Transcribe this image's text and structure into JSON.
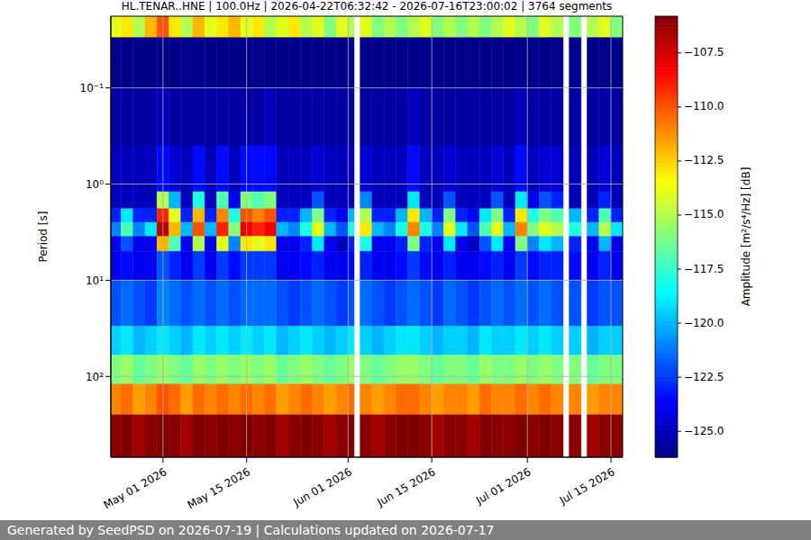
{
  "chart_data": {
    "type": "heatmap",
    "title": "HL.TENAR..HNE | 100.0Hz | 2026-04-22T06:32:42 - 2026-07-16T23:00:02 | 3764 segments",
    "ylabel": "Period [s]",
    "footer": "Generated by SeedPSD on 2026-07-19 | Calculations updated on 2026-07-17",
    "log": "y",
    "grid": true,
    "xlim": [
      "2026-04-22T06:32:42",
      "2026-07-16T23:00:02"
    ],
    "xticks": [
      {
        "value": "2026-05-01",
        "label": "May 01 2026"
      },
      {
        "value": "2026-05-15",
        "label": "May 15 2026"
      },
      {
        "value": "2026-06-01",
        "label": "Jun 01 2026"
      },
      {
        "value": "2026-06-15",
        "label": "Jun 15 2026"
      },
      {
        "value": "2026-07-01",
        "label": "Jul 01 2026"
      },
      {
        "value": "2026-07-15",
        "label": "Jul 15 2026"
      }
    ],
    "ylim": [
      0.018,
      690
    ],
    "yticks": [
      {
        "value": 0.1,
        "label": "10⁻¹"
      },
      {
        "value": 1,
        "label": "10⁰"
      },
      {
        "value": 10,
        "label": "10¹"
      },
      {
        "value": 100,
        "label": "10²"
      }
    ],
    "x": [
      "2026-04-22",
      "2026-04-24",
      "2026-04-26",
      "2026-04-28",
      "2026-04-30",
      "2026-05-02",
      "2026-05-04",
      "2026-05-06",
      "2026-05-08",
      "2026-05-10",
      "2026-05-12",
      "2026-05-14",
      "2026-05-16",
      "2026-05-18",
      "2026-05-20",
      "2026-05-22",
      "2026-05-24",
      "2026-05-26",
      "2026-05-28",
      "2026-05-30",
      "2026-06-01",
      "2026-06-02",
      "2026-06-03",
      "2026-06-05",
      "2026-06-07",
      "2026-06-09",
      "2026-06-11",
      "2026-06-13",
      "2026-06-15",
      "2026-06-17",
      "2026-06-19",
      "2026-06-21",
      "2026-06-23",
      "2026-06-25",
      "2026-06-27",
      "2026-06-29",
      "2026-07-01",
      "2026-07-03",
      "2026-07-05",
      "2026-07-07",
      "2026-07-08",
      "2026-07-10",
      "2026-07-11",
      "2026-07-13",
      "2026-07-15"
    ],
    "y_edges": [
      0.018,
      0.03,
      0.1,
      0.4,
      1.2,
      1.8,
      2.5,
      3.5,
      5,
      10,
      30,
      60,
      120,
      250,
      690
    ],
    "values": [
      [
        -114,
        -113,
        -115,
        -112,
        -110,
        -113,
        -115,
        -112,
        -114,
        -113,
        -112,
        -114,
        -113,
        -115,
        -114,
        -113,
        -115,
        -114,
        -116,
        -114,
        -115,
        null,
        -114,
        -116,
        -115,
        -116,
        -115,
        -114,
        -116,
        -115,
        -116,
        -115,
        -116,
        -115,
        -114,
        -115,
        -116,
        -114,
        -115,
        null,
        -116,
        null,
        -115,
        -114,
        -116
      ],
      [
        -126,
        -126,
        -126,
        -126,
        -126,
        -126,
        -126,
        -126,
        -126,
        -126,
        -126,
        -126,
        -126,
        -126,
        -126,
        -126,
        -126,
        -126,
        -126,
        -126,
        -126,
        null,
        -126,
        -126,
        -126,
        -126,
        -126,
        -126,
        -126,
        -126,
        -126,
        -126,
        -126,
        -126,
        -126,
        -126,
        -126,
        -126,
        -126,
        null,
        -126,
        null,
        -126,
        -126,
        -126
      ],
      [
        -125.5,
        -125.5,
        -125.5,
        -125.5,
        -125,
        -125.5,
        -125.5,
        -125.5,
        -125.5,
        -125.5,
        -125.5,
        -125.5,
        -125.5,
        -125,
        -125.5,
        -125.5,
        -125.5,
        -125.5,
        -125.5,
        -125.5,
        -125.5,
        null,
        -125.5,
        -125.5,
        -125.5,
        -125.5,
        -125,
        -125.5,
        -125.5,
        -125.5,
        -125.5,
        -125.5,
        -125.5,
        -125.5,
        -125.5,
        -125,
        -125.5,
        -125.5,
        -125.5,
        null,
        -125.5,
        null,
        -125.5,
        -125.5,
        -125.5
      ],
      [
        -125,
        -125,
        -125,
        -125,
        -123.5,
        -124.5,
        -125,
        -123.5,
        -125,
        -123.5,
        -125,
        -123.5,
        -123.5,
        -123.5,
        -125,
        -125,
        -125,
        -124.5,
        -125,
        -125,
        -125,
        null,
        -124.5,
        -125,
        -125,
        -125,
        -123.5,
        -125,
        -125,
        -124.5,
        -125,
        -125,
        -125,
        -124.5,
        -125,
        -123.5,
        -125,
        -124.5,
        -124.5,
        null,
        -125,
        null,
        -125,
        -124.5,
        -125
      ],
      [
        -125,
        -125,
        -125,
        -125,
        -115,
        -120,
        -125,
        -118,
        -125,
        -117,
        -124,
        -116,
        -117,
        -116,
        -125,
        -125,
        -125,
        -122,
        -125,
        -125,
        -125,
        null,
        -121,
        -125,
        -125,
        -125,
        -119,
        -125,
        -125,
        -122,
        -125,
        -125,
        -125,
        -122,
        -125,
        -119,
        -124,
        -122,
        -123,
        null,
        -125,
        null,
        -125,
        -123,
        -125
      ],
      [
        -123,
        -119,
        -123,
        -123,
        -109,
        -114,
        -123,
        -112,
        -123,
        -111,
        -118,
        -110,
        -111,
        -110,
        -123,
        -123,
        -120,
        -116,
        -123,
        -124,
        -120,
        null,
        -115,
        -123,
        -123,
        -120,
        -113,
        -120,
        -123,
        -116,
        -123,
        -124,
        -119,
        -116,
        -123,
        -113,
        -118,
        -116,
        -117,
        null,
        -120,
        null,
        -123,
        -117,
        -123
      ],
      [
        -121,
        -117,
        -121,
        -119,
        -107,
        -112,
        -120,
        -110,
        -120,
        -109,
        -116,
        -108,
        -109,
        -108,
        -120,
        -121,
        -118,
        -114,
        -120,
        -122,
        -118,
        null,
        -113,
        -120,
        -121,
        -118,
        -111,
        -118,
        -121,
        -114,
        -119,
        -122,
        -117,
        -114,
        -120,
        -111,
        -116,
        -114,
        -115,
        null,
        -118,
        null,
        -120,
        -115,
        -119
      ],
      [
        -124,
        -122,
        -124,
        -124,
        -112,
        -117,
        -124,
        -115,
        -124,
        -114,
        -121,
        -113,
        -114,
        -113,
        -124,
        -124,
        -123,
        -119,
        -124,
        -125,
        -123,
        null,
        -118,
        -124,
        -124,
        -123,
        -116,
        -123,
        -124,
        -119,
        -124,
        -125,
        -122,
        -119,
        -124,
        -116,
        -121,
        -119,
        -120,
        null,
        -123,
        null,
        -124,
        -120,
        -124
      ],
      [
        -124,
        -123.5,
        -124,
        -124,
        -122,
        -123,
        -124,
        -122.5,
        -124,
        -122.5,
        -123.5,
        -122.5,
        -122.5,
        -122.5,
        -124,
        -124,
        -123.5,
        -123,
        -124,
        -124,
        -123.5,
        null,
        -123,
        -124,
        -124,
        -123.5,
        -122.5,
        -123.5,
        -124,
        -123,
        -124,
        -124,
        -123.5,
        -123,
        -124,
        -122.5,
        -123.5,
        -123,
        -123,
        null,
        -123.5,
        null,
        -124,
        -123,
        -124
      ],
      [
        -122,
        -121.5,
        -122,
        -122.5,
        -121,
        -121.5,
        -122,
        -121.5,
        -122,
        -121.5,
        -122,
        -121.5,
        -121.5,
        -121.5,
        -122,
        -122.5,
        -122,
        -121.5,
        -122,
        -122.5,
        -122,
        null,
        -121.5,
        -122,
        -122.5,
        -122,
        -121.5,
        -122,
        -122.5,
        -121.5,
        -122,
        -122.5,
        -122,
        -121.5,
        -122,
        -121.5,
        -122,
        -121.5,
        -122,
        null,
        -122,
        null,
        -122.5,
        -122,
        -122
      ],
      [
        -119.5,
        -119,
        -120,
        -119.5,
        -119,
        -119.5,
        -120,
        -119,
        -119.5,
        -119,
        -119.5,
        -119,
        -119.5,
        -119,
        -120,
        -119.5,
        -119,
        -119.5,
        -120,
        -119.5,
        -119,
        null,
        -119.5,
        -120,
        -119.5,
        -119,
        -119,
        -119.5,
        -120,
        -119.5,
        -119.5,
        -120,
        -119,
        -119.5,
        -119.5,
        -119,
        -119.5,
        -119,
        -119.5,
        null,
        -119.5,
        null,
        -120,
        -119.5,
        -119.5
      ],
      [
        -116,
        -115.5,
        -116.5,
        -116,
        -115.5,
        -116,
        -116.5,
        -115.5,
        -116,
        -115.5,
        -116,
        -115.5,
        -116,
        -115.5,
        -116.5,
        -116,
        -115.5,
        -116,
        -116.5,
        -116,
        -115.5,
        null,
        -116,
        -116.5,
        -116,
        -115.5,
        -115.5,
        -116,
        -116.5,
        -116,
        -116,
        -116.5,
        -115.5,
        -116,
        -116,
        -115.5,
        -116,
        -115.5,
        -116,
        null,
        -116,
        null,
        -116.5,
        -116,
        -116
      ],
      [
        -111,
        -110.5,
        -111.5,
        -111,
        -110,
        -110.5,
        -111.5,
        -110.5,
        -111,
        -110.5,
        -111,
        -110.5,
        -111,
        -110.5,
        -111.5,
        -111,
        -110.5,
        -111,
        -111.5,
        -111,
        -110.5,
        null,
        -111,
        -111.5,
        -111,
        -110.5,
        -110.5,
        -111,
        -111.5,
        -111,
        -111,
        -111.5,
        -110.5,
        -111,
        -111,
        -110.5,
        -111,
        -110.5,
        -111,
        null,
        -111,
        null,
        -111.5,
        -111,
        -111
      ],
      [
        -106,
        -105.5,
        -106.5,
        -106,
        -105.5,
        -106,
        -106.5,
        -105.5,
        -106,
        -105.5,
        -106,
        -105.5,
        -106,
        -105.5,
        -106.5,
        -106,
        -105.5,
        -106,
        -106.5,
        -106,
        -105.5,
        null,
        -106,
        -106.5,
        -106,
        -105.5,
        -105.5,
        -106,
        -106.5,
        -106,
        -106,
        -106.5,
        -105.5,
        -106,
        -106,
        -105.5,
        -106,
        -105.5,
        -106,
        null,
        -106,
        null,
        -106.5,
        -106,
        -106
      ]
    ],
    "colorbar": {
      "range": [
        -126.2,
        -105.8
      ],
      "label": "Amplitude [m²/s⁴/Hz] [dB]",
      "ticks": [
        {
          "value": -107.5,
          "label": "−107.5"
        },
        {
          "value": -110,
          "label": "−110.0"
        },
        {
          "value": -112.5,
          "label": "−112.5"
        },
        {
          "value": -115,
          "label": "−115.0"
        },
        {
          "value": -117.5,
          "label": "−117.5"
        },
        {
          "value": -120,
          "label": "−120.0"
        },
        {
          "value": -122.5,
          "label": "−122.5"
        },
        {
          "value": -125,
          "label": "−125.0"
        }
      ]
    }
  }
}
